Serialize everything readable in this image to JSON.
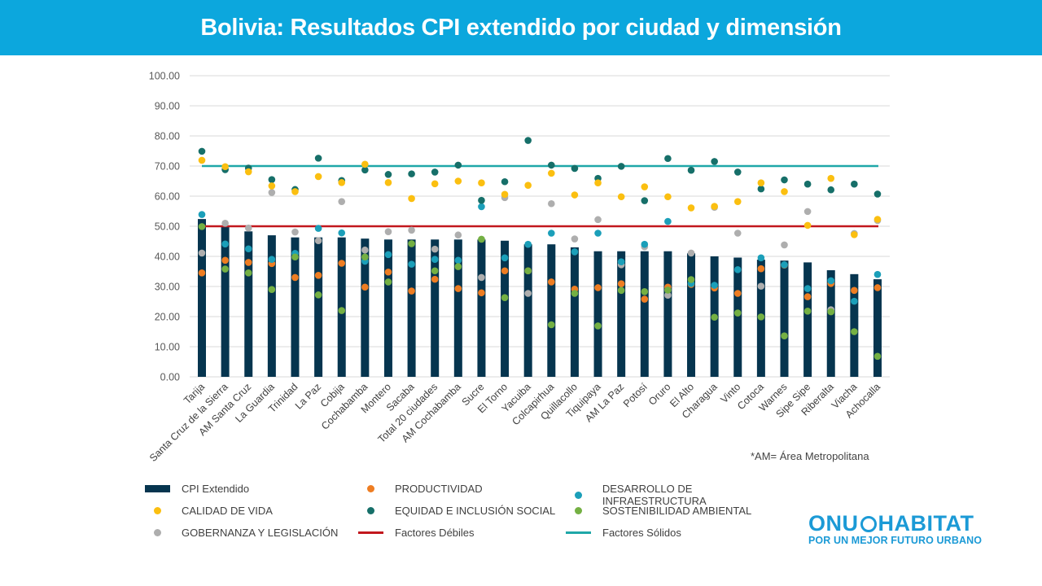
{
  "header": {
    "title": "Bolivia: Resultados CPI extendido por ciudad y dimensión"
  },
  "note": "*AM= Área Metropolitana",
  "logo": {
    "name": "ONU-HABITAT",
    "left": "ONU",
    "right": "HABITAT",
    "tagline": "POR UN MEJOR FUTURO URBANO"
  },
  "chart_data": {
    "type": "bar",
    "title": "Bolivia: Resultados CPI extendido por ciudad y dimensión",
    "ylim": [
      0,
      100
    ],
    "yticks": [
      "0.00",
      "10.00",
      "20.00",
      "30.00",
      "40.00",
      "50.00",
      "60.00",
      "70.00",
      "80.00",
      "90.00",
      "100.00"
    ],
    "grid": true,
    "legend_position": "bottom",
    "categories": [
      "Tarija",
      "Santa Cruz de la Sierra",
      "AM Santa Cruz",
      "La Guardia",
      "Trinidad",
      "La Paz",
      "Cobija",
      "Cochabamba",
      "Montero",
      "Sacaba",
      "Total 20 ciudades",
      "AM Cochabamba",
      "Sucre",
      "El Torno",
      "Yacuiba",
      "Colcapirhua",
      "Quillacollo",
      "Tiquipaya",
      "AM La Paz",
      "Potosí",
      "Oruro",
      "El Alto",
      "Charagua",
      "Vinto",
      "Cotoca",
      "Warnes",
      "Sipe Sipe",
      "Riberalta",
      "Viacha",
      "Achocalla"
    ],
    "bar_series": {
      "name": "CPI Extendido",
      "color": "#06354f",
      "values": [
        52.4,
        50.0,
        48.3,
        47.0,
        46.3,
        46.3,
        46.3,
        45.9,
        45.6,
        45.6,
        45.6,
        45.6,
        45.6,
        45.2,
        44.0,
        44.0,
        43.0,
        41.7,
        41.7,
        41.7,
        41.7,
        41.0,
        40.0,
        39.6,
        38.9,
        38.6,
        38.0,
        35.4,
        34.1,
        32.4
      ]
    },
    "dot_series": [
      {
        "name": "PRODUCTIVIDAD",
        "color": "#ee7d22",
        "values": [
          34.5,
          38.7,
          38.0,
          37.6,
          33.0,
          33.7,
          37.7,
          29.8,
          34.8,
          28.5,
          32.4,
          29.3,
          27.9,
          35.2,
          35.2,
          31.5,
          29.1,
          29.6,
          30.9,
          25.8,
          29.8,
          30.7,
          29.5,
          27.7,
          35.9,
          37.1,
          26.6,
          31.0,
          28.7,
          29.6
        ]
      },
      {
        "name": "DESARROLLO DE INFRAESTRUCTURA",
        "color": "#1b9fb9",
        "values": [
          53.9,
          44.1,
          42.5,
          39.0,
          41.0,
          49.3,
          47.8,
          38.4,
          40.6,
          37.4,
          39.0,
          38.7,
          56.5,
          39.5,
          44.0,
          47.7,
          41.5,
          47.7,
          38.2,
          44.0,
          51.6,
          31.0,
          30.4,
          35.6,
          39.5,
          37.2,
          29.3,
          31.9,
          25.1,
          34.0
        ]
      },
      {
        "name": "CALIDAD DE VIDA",
        "color": "#fbbf10",
        "values": [
          71.9,
          69.8,
          68.1,
          63.4,
          61.5,
          66.5,
          64.5,
          70.6,
          64.5,
          59.2,
          64.1,
          65.0,
          64.4,
          60.6,
          63.6,
          67.6,
          60.4,
          64.4,
          59.8,
          63.1,
          59.8,
          56.1,
          56.6,
          58.2,
          64.4,
          61.5,
          50.3,
          65.9,
          47.2,
          52.3
        ]
      },
      {
        "name": "EQUIDAD E INCLUSIÓN SOCIAL",
        "color": "#166f69",
        "values": [
          74.9,
          68.8,
          69.3,
          65.5,
          62.2,
          72.6,
          65.2,
          68.7,
          67.2,
          67.4,
          68.0,
          70.3,
          58.6,
          64.8,
          78.5,
          70.3,
          69.2,
          65.9,
          69.9,
          58.5,
          72.5,
          68.6,
          71.5,
          68.0,
          62.4,
          65.4,
          64.0,
          62.1,
          64.0,
          60.7
        ]
      },
      {
        "name": "SOSTENIBILIDAD AMBIENTAL",
        "color": "#74b043",
        "values": [
          49.9,
          35.8,
          34.5,
          29.0,
          39.8,
          27.2,
          22.0,
          39.8,
          31.5,
          44.2,
          35.2,
          36.6,
          45.7,
          26.3,
          35.2,
          17.3,
          27.7,
          16.9,
          28.7,
          28.3,
          28.8,
          32.3,
          19.8,
          21.2,
          19.9,
          13.6,
          21.8,
          21.6,
          15.0,
          6.8
        ]
      },
      {
        "name": "GOBERNANZA Y LEGISLACIÓN",
        "color": "#aeaeae",
        "values": [
          41.1,
          51.0,
          49.4,
          61.2,
          48.1,
          45.2,
          58.2,
          42.1,
          48.2,
          48.7,
          42.4,
          47.1,
          33.0,
          59.5,
          27.7,
          57.5,
          45.8,
          52.2,
          37.2,
          43.2,
          27.1,
          41.1,
          56.3,
          47.7,
          30.1,
          43.8,
          54.9,
          22.3,
          47.6,
          51.9
        ]
      }
    ],
    "reference_lines": [
      {
        "name": "Factores Débiles",
        "value": 50,
        "color": "#c2171d"
      },
      {
        "name": "Factores Sólidos",
        "value": 70,
        "color": "#1fa7a8"
      }
    ]
  }
}
